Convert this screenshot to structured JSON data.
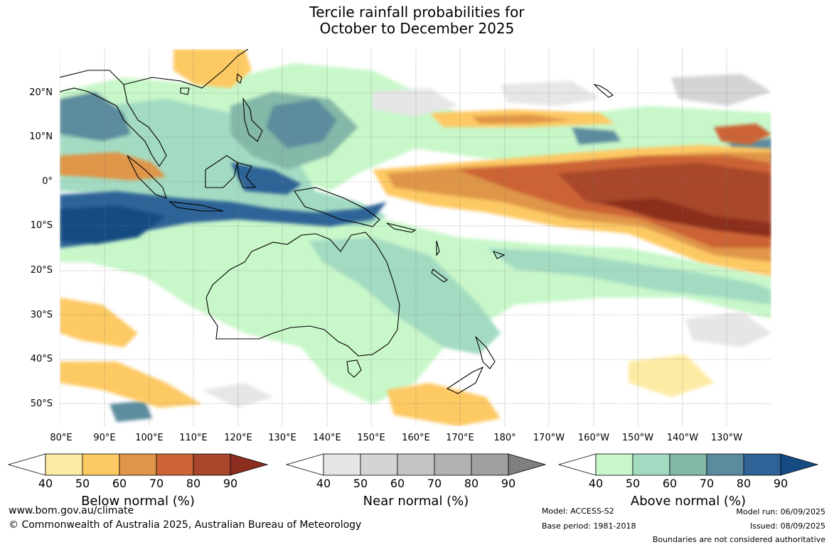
{
  "title": {
    "line1": "Tercile rainfall probabilities for",
    "line2": "October to December 2025"
  },
  "map": {
    "lat_labels": [
      "20°N",
      "10°N",
      "0°",
      "10°S",
      "20°S",
      "30°S",
      "40°S",
      "50°S"
    ],
    "lon_labels": [
      "80°E",
      "90°E",
      "100°E",
      "110°E",
      "120°E",
      "130°E",
      "140°E",
      "150°E",
      "160°E",
      "170°E",
      "180°",
      "170°W",
      "160°W",
      "150°W",
      "140°W",
      "130°W"
    ]
  },
  "legends": {
    "below": {
      "title": "Below normal (%)",
      "ticks": [
        "40",
        "50",
        "60",
        "70",
        "80",
        "90"
      ],
      "colors": [
        "#ffffff",
        "#feeba3",
        "#fdc963",
        "#e0964a",
        "#cc6435",
        "#a8472b",
        "#8b2e1f"
      ]
    },
    "near": {
      "title": "Near normal (%)",
      "ticks": [
        "40",
        "50",
        "60",
        "70",
        "80",
        "90"
      ],
      "colors": [
        "#ffffff",
        "#e6e6e6",
        "#d4d4d4",
        "#c4c4c4",
        "#b2b2b2",
        "#a0a0a0",
        "#7f7f7f"
      ]
    },
    "above": {
      "title": "Above normal (%)",
      "ticks": [
        "40",
        "50",
        "60",
        "70",
        "80",
        "90"
      ],
      "colors": [
        "#ffffff",
        "#c8f7c9",
        "#a3dbc2",
        "#84b8a8",
        "#5b8c9e",
        "#2f6397",
        "#154b82"
      ]
    }
  },
  "footer": {
    "website": "www.bom.gov.au/climate",
    "copyright": "© Commonwealth of Australia 2025, Australian Bureau of Meteorology",
    "model": "Model: ACCESS-S2",
    "base_period": "Base period: 1981-2018",
    "model_run": "Model run: 06/09/2025",
    "issued": "Issued: 08/09/2025",
    "disclaimer": "Boundaries are not considered authoritative"
  }
}
